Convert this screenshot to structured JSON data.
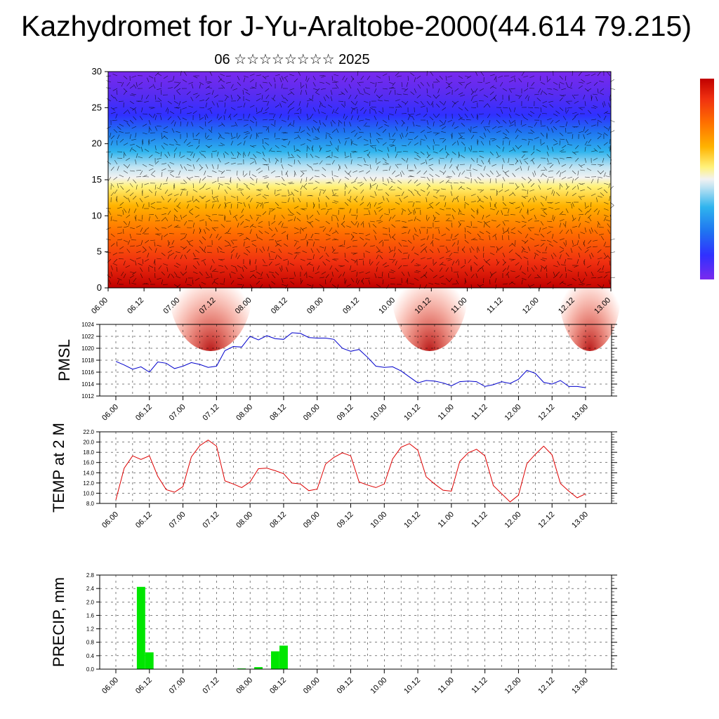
{
  "header": {
    "title": "Kazhydromet for J-Yu-Araltobe-2000(44.614 79.215)",
    "subtitle": "06 ☆☆☆☆☆☆☆☆ 2025"
  },
  "chart_data": [
    {
      "type": "heatmap",
      "ylim": [
        0,
        30
      ],
      "y_ticks": [
        "0",
        "5",
        "10",
        "15",
        "20",
        "25",
        "30"
      ],
      "x_ticks": [
        "06.00",
        "06.12",
        "07.00",
        "07.12",
        "08.00",
        "08.12",
        "09.00",
        "09.12",
        "10.00",
        "10.12",
        "11.00",
        "11.12",
        "12.00",
        "12.12",
        "13.00"
      ],
      "colormap": [
        "#c00000",
        "#f03010",
        "#ff7000",
        "#ffb300",
        "#fff27a",
        "#f2f2f2",
        "#bfe3f2",
        "#2fb4ee",
        "#1f74f0",
        "#3030ff",
        "#7a2aee"
      ],
      "overlay": "wind barbs",
      "colorbar": "right"
    },
    {
      "type": "line",
      "ylabel": "PMSL",
      "ylim": [
        1012,
        1024
      ],
      "y_ticks": [
        "1024",
        "1022",
        "1020",
        "1018",
        "1016",
        "1014",
        "1012"
      ],
      "x_ticks": [
        "06.00",
        "06.12",
        "07.00",
        "07.12",
        "08.00",
        "08.12",
        "09.00",
        "09.12",
        "10.00",
        "10.12",
        "11.00",
        "11.12",
        "12.00",
        "12.12",
        "13.00"
      ],
      "x_step_hours": 3,
      "color": "#0000cc",
      "values": [
        1017.8,
        1017.2,
        1016.5,
        1016.9,
        1016.0,
        1017.7,
        1017.5,
        1016.6,
        1017.0,
        1017.6,
        1017.3,
        1016.8,
        1017.0,
        1019.6,
        1020.3,
        1020.2,
        1022.0,
        1021.4,
        1022.1,
        1021.6,
        1021.5,
        1022.6,
        1022.5,
        1021.8,
        1021.7,
        1021.7,
        1021.5,
        1020.0,
        1019.5,
        1019.8,
        1018.5,
        1017.0,
        1016.8,
        1016.9,
        1016.2,
        1015.2,
        1014.2,
        1014.6,
        1014.5,
        1014.2,
        1013.7,
        1014.4,
        1014.5,
        1014.4,
        1013.6,
        1013.9,
        1014.4,
        1014.1,
        1014.8,
        1016.3,
        1015.8,
        1014.3,
        1014.0,
        1014.6,
        1013.6,
        1013.6,
        1013.4
      ],
      "grid": true
    },
    {
      "type": "line",
      "ylabel": "TEMP at 2 M",
      "ylim": [
        8,
        22
      ],
      "y_ticks": [
        "22.0",
        "20.0",
        "18.0",
        "16.0",
        "14.0",
        "12.0",
        "10.0",
        "8.0"
      ],
      "x_ticks": [
        "06.00",
        "06.12",
        "07.00",
        "07.12",
        "08.00",
        "08.12",
        "09.00",
        "09.12",
        "10.00",
        "10.12",
        "11.00",
        "11.12",
        "12.00",
        "12.12",
        "13.00"
      ],
      "x_step_hours": 3,
      "color": "#dd0000",
      "values": [
        8.7,
        14.9,
        17.3,
        16.6,
        17.3,
        13.3,
        10.7,
        10.2,
        11.3,
        17.1,
        19.3,
        20.4,
        19.2,
        12.4,
        11.8,
        11.1,
        12.2,
        14.8,
        14.9,
        14.4,
        13.8,
        12.0,
        11.8,
        10.5,
        10.8,
        15.7,
        17.0,
        17.9,
        17.3,
        12.2,
        11.6,
        11.1,
        11.8,
        16.7,
        19.0,
        19.7,
        18.4,
        13.2,
        11.8,
        10.6,
        10.4,
        16.2,
        17.9,
        18.6,
        17.3,
        11.5,
        9.9,
        8.3,
        9.6,
        15.8,
        17.6,
        19.2,
        17.5,
        11.9,
        10.4,
        9.1,
        9.9
      ],
      "grid": true
    },
    {
      "type": "bar",
      "ylabel": "PRECIP, mm",
      "ylim": [
        0,
        2.8
      ],
      "y_ticks": [
        "2.8",
        "2.4",
        "2.0",
        "1.6",
        "1.2",
        "0.8",
        "0.4",
        "0.0"
      ],
      "x_ticks": [
        "06.00",
        "06.12",
        "07.00",
        "07.12",
        "08.00",
        "08.12",
        "09.00",
        "09.12",
        "10.00",
        "10.12",
        "11.00",
        "11.12",
        "12.00",
        "12.12",
        "13.00"
      ],
      "x_step_hours": 3,
      "color": "#00e600",
      "values": [
        0,
        0,
        0,
        2.45,
        0.5,
        0,
        0,
        0,
        0,
        0,
        0,
        0,
        0,
        0,
        0,
        0.02,
        0,
        0.06,
        0,
        0.53,
        0.7,
        0,
        0,
        0,
        0,
        0,
        0,
        0,
        0,
        0,
        0,
        0,
        0,
        0,
        0,
        0,
        0,
        0,
        0,
        0,
        0,
        0,
        0,
        0,
        0,
        0,
        0,
        0,
        0,
        0,
        0,
        0,
        0,
        0,
        0,
        0
      ],
      "grid": true
    }
  ]
}
